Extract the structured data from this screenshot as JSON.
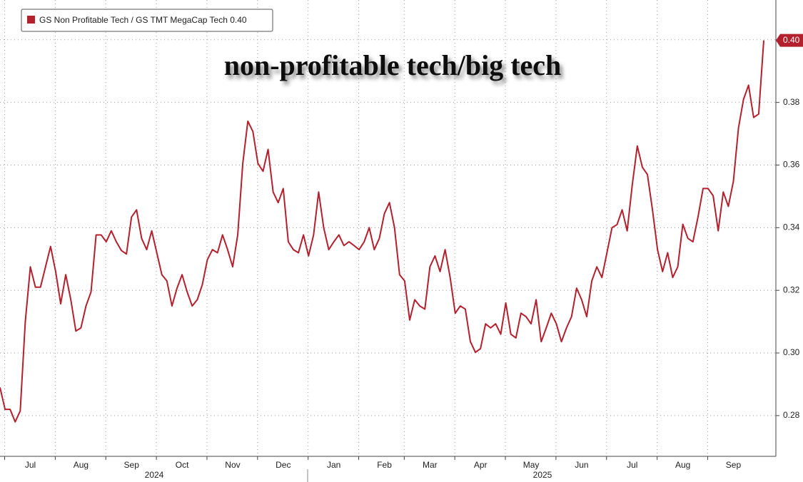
{
  "chart_data": {
    "type": "line",
    "title": "non-profitable tech/big tech",
    "categories": [
      null,
      null,
      null,
      null,
      null,
      null,
      "Jul",
      null,
      null,
      null,
      null,
      null,
      null,
      null,
      null,
      null,
      "Aug",
      null,
      null,
      null,
      null,
      null,
      null,
      null,
      null,
      null,
      "Sep",
      null,
      null,
      null,
      null,
      null,
      null,
      null,
      null,
      null,
      "Oct",
      null,
      null,
      null,
      null,
      null,
      null,
      null,
      null,
      null,
      "Nov",
      null,
      null,
      null,
      null,
      null,
      null,
      null,
      null,
      null,
      "Dec",
      null,
      null,
      null,
      null,
      null,
      null,
      null,
      null,
      null,
      "Jan",
      null,
      null,
      null,
      null,
      null,
      null,
      null,
      null,
      null,
      "Feb",
      null,
      null,
      null,
      null,
      null,
      null,
      null,
      null,
      "Mar",
      null,
      null,
      null,
      null,
      null,
      null,
      null,
      null,
      null,
      "Apr",
      null,
      null,
      null,
      null,
      null,
      null,
      null,
      null,
      null,
      "May",
      null,
      null,
      null,
      null,
      null,
      null,
      null,
      null,
      null,
      "Jun",
      null,
      null,
      null,
      null,
      null,
      null,
      null,
      null,
      null,
      "Jul",
      null,
      null,
      null,
      null,
      null,
      null,
      null,
      null,
      null,
      "Aug",
      null,
      null,
      null,
      null,
      null,
      null,
      null,
      null,
      null,
      "Sep",
      null,
      null,
      null,
      null,
      null,
      null
    ],
    "year_labels": [
      "2024",
      "2025"
    ],
    "series": [
      {
        "name": "GS Non Profitable Tech / GS TMT MegaCap Tech",
        "color": "#b3202e",
        "values": [
          0.289,
          0.282,
          0.282,
          0.278,
          0.2815,
          0.31,
          0.3275,
          0.321,
          0.321,
          0.3275,
          0.334,
          0.326,
          0.3157,
          0.325,
          0.317,
          0.307,
          0.308,
          0.315,
          0.3195,
          0.3377,
          0.3377,
          0.3355,
          0.339,
          0.3355,
          0.3327,
          0.3316,
          0.3434,
          0.3457,
          0.3366,
          0.333,
          0.339,
          0.332,
          0.325,
          0.323,
          0.315,
          0.3207,
          0.325,
          0.3195,
          0.315,
          0.317,
          0.3218,
          0.3298,
          0.333,
          0.332,
          0.3377,
          0.333,
          0.3275,
          0.3377,
          0.3605,
          0.374,
          0.3707,
          0.3605,
          0.358,
          0.365,
          0.3514,
          0.348,
          0.3525,
          0.3355,
          0.333,
          0.332,
          0.3377,
          0.331,
          0.3377,
          0.3514,
          0.34,
          0.333,
          0.3355,
          0.3377,
          0.3343,
          0.3355,
          0.3343,
          0.333,
          0.3355,
          0.34,
          0.333,
          0.3366,
          0.3445,
          0.348,
          0.34,
          0.325,
          0.323,
          0.3105,
          0.317,
          0.315,
          0.314,
          0.3275,
          0.331,
          0.326,
          0.333,
          0.3241,
          0.3127,
          0.315,
          0.314,
          0.3036,
          0.3002,
          0.3014,
          0.3093,
          0.308,
          0.3093,
          0.306,
          0.316,
          0.306,
          0.3048,
          0.3127,
          0.3116,
          0.3093,
          0.317,
          0.3036,
          0.308,
          0.3127,
          0.3093,
          0.3036,
          0.308,
          0.3116,
          0.3207,
          0.317,
          0.3116,
          0.323,
          0.3275,
          0.3241,
          0.332,
          0.34,
          0.341,
          0.3457,
          0.339,
          0.3536,
          0.3661,
          0.3593,
          0.357,
          0.3457,
          0.333,
          0.326,
          0.332,
          0.3241,
          0.3275,
          0.3411,
          0.3366,
          0.3355,
          0.3434,
          0.3525,
          0.3525,
          0.3502,
          0.339,
          0.3514,
          0.3468,
          0.3548,
          0.3718,
          0.381,
          0.3855,
          0.3752,
          0.3763,
          0.3998
        ],
        "value_labels": [
          null,
          null,
          null,
          null,
          null,
          null,
          null,
          null,
          null,
          null,
          null,
          null,
          null,
          null,
          null,
          null,
          null,
          null,
          null,
          null,
          null,
          null,
          null,
          null,
          null,
          null,
          null,
          null,
          null,
          null,
          null,
          null,
          null,
          null,
          null,
          null,
          null,
          null,
          null,
          null,
          null,
          null,
          null,
          null,
          null,
          null,
          null,
          null,
          null,
          null,
          null,
          null,
          null,
          null,
          null,
          null,
          null,
          null,
          null,
          null,
          null,
          null,
          null,
          null,
          null,
          null,
          null,
          null,
          null,
          null,
          null,
          null,
          null,
          null,
          null,
          null,
          null,
          null,
          null,
          null,
          null,
          null,
          null,
          null,
          null,
          null,
          null,
          null,
          null,
          null,
          null,
          null,
          null,
          null,
          null,
          null,
          null,
          null,
          null,
          null,
          null,
          null,
          null,
          null,
          null,
          null,
          null,
          null,
          null,
          null,
          null,
          null,
          null,
          null,
          null,
          null,
          null,
          null,
          null,
          null,
          null,
          null,
          null,
          null,
          null,
          null,
          null,
          null,
          null,
          null,
          null,
          null,
          null,
          null,
          null,
          null,
          null,
          null,
          null,
          null,
          null,
          null,
          null,
          null,
          null,
          null,
          null,
          null,
          null,
          null,
          null,
          "0.40"
        ]
      }
    ],
    "ylim": [
      0.267,
      0.4127
    ],
    "yticks": [
      {
        "value": 0.28,
        "label": "0.28"
      },
      {
        "value": 0.3,
        "label": "0.30"
      },
      {
        "value": 0.32,
        "label": "0.32"
      },
      {
        "value": 0.34,
        "label": "0.34"
      },
      {
        "value": 0.36,
        "label": "0.36"
      },
      {
        "value": 0.38,
        "label": "0.38"
      },
      {
        "value": 0.4,
        "label": "0.40"
      }
    ],
    "grid": true,
    "legend": "top-left"
  }
}
